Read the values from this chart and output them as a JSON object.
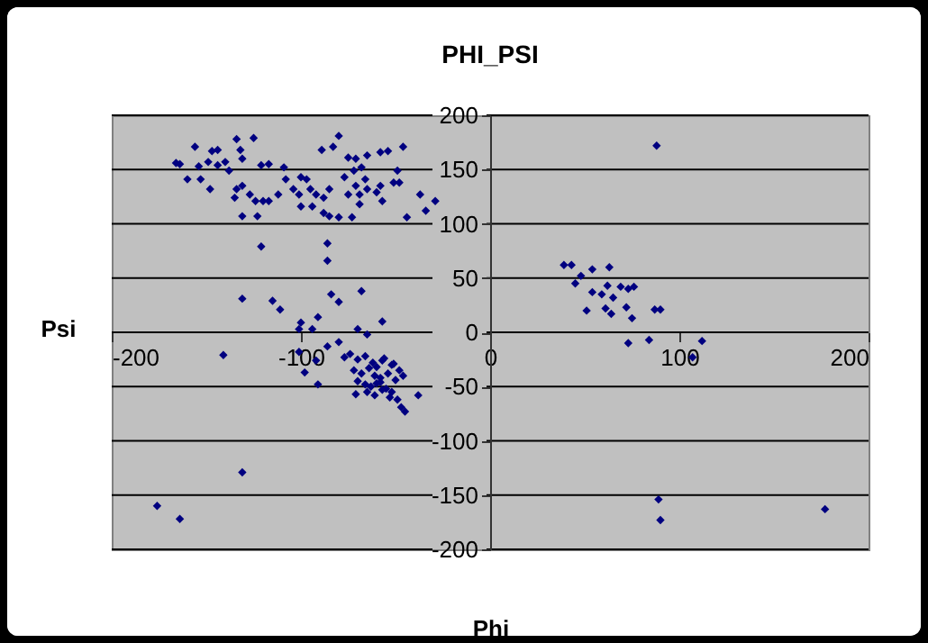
{
  "chart_data": {
    "type": "scatter",
    "title": "PHI_PSI",
    "xlabel": "Phi",
    "ylabel": "Psi",
    "xlim": [
      -200,
      200
    ],
    "xticks": [
      -200,
      -100,
      0,
      100,
      200
    ],
    "ylim": [
      -200,
      200
    ],
    "yticks": [
      -200,
      -150,
      -100,
      -50,
      0,
      50,
      100,
      150,
      200
    ],
    "grid": "y",
    "marker": "diamond",
    "legend": false,
    "series": [
      {
        "color": "#000080",
        "x": [
          88,
          39,
          43,
          45,
          48,
          54,
          63,
          62,
          54,
          59,
          65,
          69,
          73,
          76,
          51,
          61,
          64,
          72,
          75,
          87,
          90,
          73,
          84,
          107,
          112,
          89,
          90,
          177,
          -176,
          -164,
          -131,
          -45,
          -131,
          -115,
          -111,
          -84,
          -80,
          -68,
          -100,
          -91,
          -94,
          -101,
          -70,
          -57,
          -65,
          -141,
          -101,
          -86,
          -80,
          -92,
          -98,
          -91,
          -77,
          -38,
          -47,
          -49,
          -71,
          -58,
          -51,
          -57,
          -74,
          -70,
          -66,
          -62,
          -60,
          -56,
          -52,
          -48,
          -72,
          -68,
          -64,
          -61,
          -58,
          -54,
          -50,
          -46,
          -70,
          -66,
          -63,
          -60,
          -55,
          -52,
          -65,
          -61,
          -57,
          -53,
          -166,
          -164,
          -160,
          -156,
          -154,
          -153,
          -149,
          -148,
          -147,
          -144,
          -144,
          -140,
          -138,
          -134,
          -132,
          -131,
          -125,
          -121,
          -117,
          -134,
          -135,
          -131,
          -127,
          -131,
          -123,
          -124,
          -120,
          -117,
          -112,
          -109,
          -108,
          -104,
          -100,
          -97,
          -95,
          -101,
          -92,
          -94,
          -88,
          -85,
          -89,
          -83,
          -80,
          -88,
          -85,
          -80,
          -73,
          -121,
          -86,
          -86,
          -75,
          -71,
          -65,
          -58,
          -54,
          -46,
          -77,
          -72,
          -68,
          -66,
          -71,
          -75,
          -69,
          -65,
          -58,
          -60,
          -57,
          -49,
          -51,
          -48,
          -44,
          -37,
          -34,
          -29,
          -69,
          -100
        ],
        "values": [
          172,
          62,
          62,
          45,
          52,
          58,
          60,
          43,
          37,
          35,
          32,
          42,
          40,
          42,
          20,
          22,
          17,
          23,
          13,
          21,
          21,
          -10,
          -7,
          -23,
          -8,
          -154,
          -173,
          -163,
          -160,
          -172,
          -129,
          -73,
          31,
          29,
          21,
          35,
          28,
          38,
          9,
          14,
          3,
          3,
          3,
          10,
          -2,
          -21,
          -18,
          -13,
          -9,
          -26,
          -37,
          -48,
          -23,
          -58,
          -69,
          -62,
          -57,
          -46,
          -29,
          -26,
          -20,
          -25,
          -22,
          -28,
          -32,
          -24,
          -30,
          -35,
          -35,
          -38,
          -33,
          -40,
          -42,
          -38,
          -44,
          -40,
          -45,
          -48,
          -50,
          -47,
          -52,
          -55,
          -55,
          -58,
          -53,
          -60,
          156,
          155,
          141,
          171,
          153,
          141,
          157,
          132,
          167,
          154,
          168,
          157,
          149,
          178,
          168,
          160,
          179,
          154,
          155,
          132,
          124,
          135,
          127,
          107,
          107,
          121,
          121,
          121,
          127,
          152,
          141,
          132,
          143,
          141,
          132,
          127,
          127,
          116,
          124,
          132,
          168,
          171,
          181,
          110,
          107,
          106,
          106,
          79,
          82,
          66,
          161,
          160,
          163,
          166,
          167,
          171,
          143,
          149,
          152,
          141,
          135,
          127,
          127,
          132,
          135,
          129,
          121,
          149,
          138,
          138,
          106,
          127,
          112,
          121,
          118,
          116
        ]
      }
    ]
  }
}
